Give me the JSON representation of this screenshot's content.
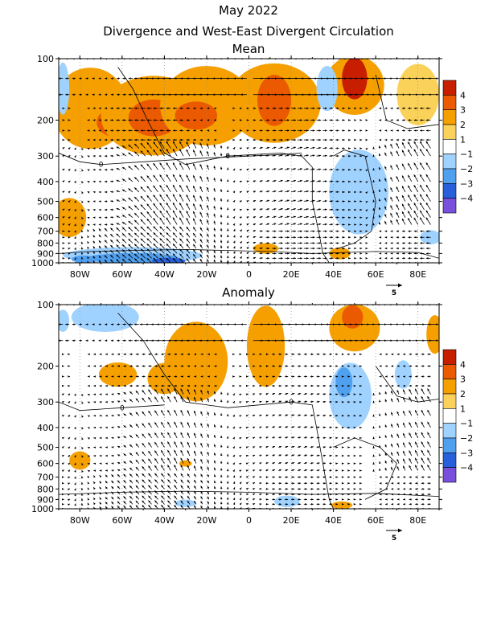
{
  "page": {
    "title_line1": "May 2022",
    "title_line2": "Divergence and West-East Divergent Circulation"
  },
  "chart_data": [
    {
      "type": "heatmap",
      "title": "Mean",
      "x_ticks": [
        "80W",
        "60W",
        "40W",
        "20W",
        "0",
        "20E",
        "40E",
        "60E",
        "80E"
      ],
      "x_tick_values": [
        -80,
        -60,
        -40,
        -20,
        0,
        20,
        40,
        60,
        80
      ],
      "xlim": [
        -90,
        90
      ],
      "y_ticks": [
        "100",
        "200",
        "300",
        "400",
        "500",
        "600",
        "700",
        "800",
        "900",
        "1000"
      ],
      "y_tick_values": [
        100,
        200,
        300,
        400,
        500,
        600,
        700,
        800,
        900,
        1000
      ],
      "ylim": [
        1000,
        100
      ],
      "y_scale": "log",
      "contour_label": "0",
      "colorbar": {
        "labels": [
          "4",
          "3",
          "2",
          "1",
          "-1",
          "-2",
          "-3",
          "-4"
        ],
        "colors": [
          "#c81e00",
          "#eb5a00",
          "#f5a000",
          "#fad25a",
          "#ffffff",
          "#a0d2ff",
          "#50a0f0",
          "#2860dc",
          "#7850dc"
        ]
      },
      "vector_reference": "5",
      "blobs": [
        {
          "lon": -75,
          "p": 175,
          "rx": 18,
          "ry": 75,
          "v": 2
        },
        {
          "lon": -62,
          "p": 205,
          "rx": 10,
          "ry": 35,
          "v": 3
        },
        {
          "lon": -45,
          "p": 190,
          "rx": 25,
          "ry": 80,
          "v": 2
        },
        {
          "lon": -45,
          "p": 195,
          "rx": 12,
          "ry": 40,
          "v": 3
        },
        {
          "lon": -20,
          "p": 170,
          "rx": 22,
          "ry": 75,
          "v": 2
        },
        {
          "lon": -25,
          "p": 190,
          "rx": 10,
          "ry": 30,
          "v": 3
        },
        {
          "lon": 12,
          "p": 165,
          "rx": 22,
          "ry": 80,
          "v": 2
        },
        {
          "lon": 12,
          "p": 160,
          "rx": 8,
          "ry": 45,
          "v": 3
        },
        {
          "lon": 50,
          "p": 135,
          "rx": 14,
          "ry": 60,
          "v": 2
        },
        {
          "lon": 50,
          "p": 125,
          "rx": 6,
          "ry": 35,
          "v": 4
        },
        {
          "lon": 80,
          "p": 150,
          "rx": 10,
          "ry": 50,
          "v": 1
        },
        {
          "lon": -85,
          "p": 600,
          "rx": 8,
          "ry": 130,
          "v": 2
        },
        {
          "lon": -88,
          "p": 140,
          "rx": 3,
          "ry": 40,
          "v": -2
        },
        {
          "lon": 37,
          "p": 140,
          "rx": 5,
          "ry": 35,
          "v": -2
        },
        {
          "lon": 52,
          "p": 450,
          "rx": 14,
          "ry": 200,
          "v": -2
        },
        {
          "lon": 8,
          "p": 850,
          "rx": 6,
          "ry": 50,
          "v": 2
        },
        {
          "lon": 43,
          "p": 900,
          "rx": 5,
          "ry": 60,
          "v": 2
        },
        {
          "lon": 86,
          "p": 750,
          "rx": 5,
          "ry": 60,
          "v": -2
        },
        {
          "lon": -55,
          "p": 920,
          "rx": 33,
          "ry": 90,
          "v": -2
        },
        {
          "lon": -55,
          "p": 950,
          "rx": 22,
          "ry": 60,
          "v": -3
        },
        {
          "lon": -38,
          "p": 980,
          "rx": 8,
          "ry": 40,
          "v": -4
        },
        {
          "lon": -78,
          "p": 960,
          "rx": 6,
          "ry": 40,
          "v": -3
        }
      ],
      "contours": [
        [
          [
            -62,
            110
          ],
          [
            -55,
            140
          ],
          [
            -48,
            200
          ],
          [
            -40,
            290
          ],
          [
            -30,
            330
          ],
          [
            -10,
            300
          ],
          [
            15,
            290
          ],
          [
            25,
            300
          ],
          [
            30,
            340
          ],
          [
            30,
            500
          ],
          [
            33,
            700
          ],
          [
            35,
            900
          ],
          [
            38,
            1000
          ]
        ],
        [
          [
            -90,
            290
          ],
          [
            -80,
            320
          ],
          [
            -70,
            330
          ],
          [
            -50,
            320
          ],
          [
            -30,
            310
          ],
          [
            0,
            300
          ],
          [
            15,
            295
          ],
          [
            25,
            290
          ]
        ],
        [
          [
            -90,
            900
          ],
          [
            -75,
            880
          ],
          [
            -55,
            870
          ],
          [
            -30,
            860
          ],
          [
            -10,
            870
          ],
          [
            10,
            880
          ],
          [
            30,
            900
          ],
          [
            60,
            880
          ],
          [
            80,
            890
          ],
          [
            90,
            950
          ]
        ],
        [
          [
            40,
            300
          ],
          [
            45,
            280
          ],
          [
            55,
            300
          ],
          [
            60,
            500
          ],
          [
            58,
            700
          ],
          [
            50,
            800
          ],
          [
            42,
            850
          ]
        ],
        [
          [
            60,
            120
          ],
          [
            65,
            200
          ],
          [
            75,
            220
          ],
          [
            90,
            210
          ]
        ]
      ]
    },
    {
      "type": "heatmap",
      "title": "Anomaly",
      "x_ticks": [
        "80W",
        "60W",
        "40W",
        "20W",
        "0",
        "20E",
        "40E",
        "60E",
        "80E"
      ],
      "x_tick_values": [
        -80,
        -60,
        -40,
        -20,
        0,
        20,
        40,
        60,
        80
      ],
      "xlim": [
        -90,
        90
      ],
      "y_ticks": [
        "100",
        "200",
        "300",
        "400",
        "500",
        "600",
        "700",
        "800",
        "900",
        "1000"
      ],
      "y_tick_values": [
        100,
        200,
        300,
        400,
        500,
        600,
        700,
        800,
        900,
        1000
      ],
      "ylim": [
        1000,
        100
      ],
      "y_scale": "log",
      "contour_label": "0",
      "colorbar": {
        "labels": [
          "4",
          "3",
          "2",
          "1",
          "-1",
          "-2",
          "-3",
          "-4"
        ],
        "colors": [
          "#c81e00",
          "#eb5a00",
          "#f5a000",
          "#fad25a",
          "#ffffff",
          "#a0d2ff",
          "#50a0f0",
          "#2860dc",
          "#7850dc"
        ]
      },
      "vector_reference": "5",
      "blobs": [
        {
          "lon": -25,
          "p": 190,
          "rx": 15,
          "ry": 80,
          "v": 2
        },
        {
          "lon": -40,
          "p": 230,
          "rx": 8,
          "ry": 40,
          "v": 2
        },
        {
          "lon": 8,
          "p": 160,
          "rx": 9,
          "ry": 90,
          "v": 2
        },
        {
          "lon": -62,
          "p": 220,
          "rx": 9,
          "ry": 30,
          "v": 2
        },
        {
          "lon": 50,
          "p": 130,
          "rx": 12,
          "ry": 40,
          "v": 2
        },
        {
          "lon": 49,
          "p": 115,
          "rx": 5,
          "ry": 15,
          "v": 3
        },
        {
          "lon": 88,
          "p": 140,
          "rx": 4,
          "ry": 30,
          "v": 2
        },
        {
          "lon": -68,
          "p": 115,
          "rx": 16,
          "ry": 25,
          "v": -2
        },
        {
          "lon": -88,
          "p": 120,
          "rx": 3,
          "ry": 15,
          "v": -2
        },
        {
          "lon": -80,
          "p": 580,
          "rx": 5,
          "ry": 60,
          "v": 2
        },
        {
          "lon": -30,
          "p": 600,
          "rx": 3,
          "ry": 20,
          "v": 2
        },
        {
          "lon": 48,
          "p": 280,
          "rx": 10,
          "ry": 100,
          "v": -2
        },
        {
          "lon": 45,
          "p": 240,
          "rx": 4,
          "ry": 40,
          "v": -3
        },
        {
          "lon": 73,
          "p": 220,
          "rx": 4,
          "ry": 35,
          "v": -2
        },
        {
          "lon": -30,
          "p": 940,
          "rx": 5,
          "ry": 40,
          "v": -2
        },
        {
          "lon": 18,
          "p": 920,
          "rx": 6,
          "ry": 60,
          "v": -2
        },
        {
          "lon": 44,
          "p": 960,
          "rx": 5,
          "ry": 40,
          "v": 2
        }
      ],
      "contours": [
        [
          [
            -62,
            110
          ],
          [
            -50,
            150
          ],
          [
            -40,
            220
          ],
          [
            -30,
            300
          ],
          [
            -10,
            320
          ],
          [
            20,
            300
          ],
          [
            30,
            310
          ],
          [
            32,
            400
          ],
          [
            35,
            600
          ],
          [
            38,
            900
          ],
          [
            40,
            1000
          ]
        ],
        [
          [
            -90,
            300
          ],
          [
            -80,
            330
          ],
          [
            -60,
            320
          ],
          [
            -40,
            310
          ]
        ],
        [
          [
            -90,
            850
          ],
          [
            -60,
            830
          ],
          [
            -30,
            820
          ],
          [
            0,
            830
          ],
          [
            30,
            850
          ],
          [
            60,
            840
          ],
          [
            90,
            870
          ]
        ],
        [
          [
            40,
            500
          ],
          [
            50,
            450
          ],
          [
            62,
            500
          ],
          [
            70,
            600
          ],
          [
            65,
            800
          ],
          [
            55,
            900
          ]
        ],
        [
          [
            60,
            200
          ],
          [
            70,
            280
          ],
          [
            80,
            300
          ],
          [
            90,
            290
          ]
        ]
      ]
    }
  ]
}
